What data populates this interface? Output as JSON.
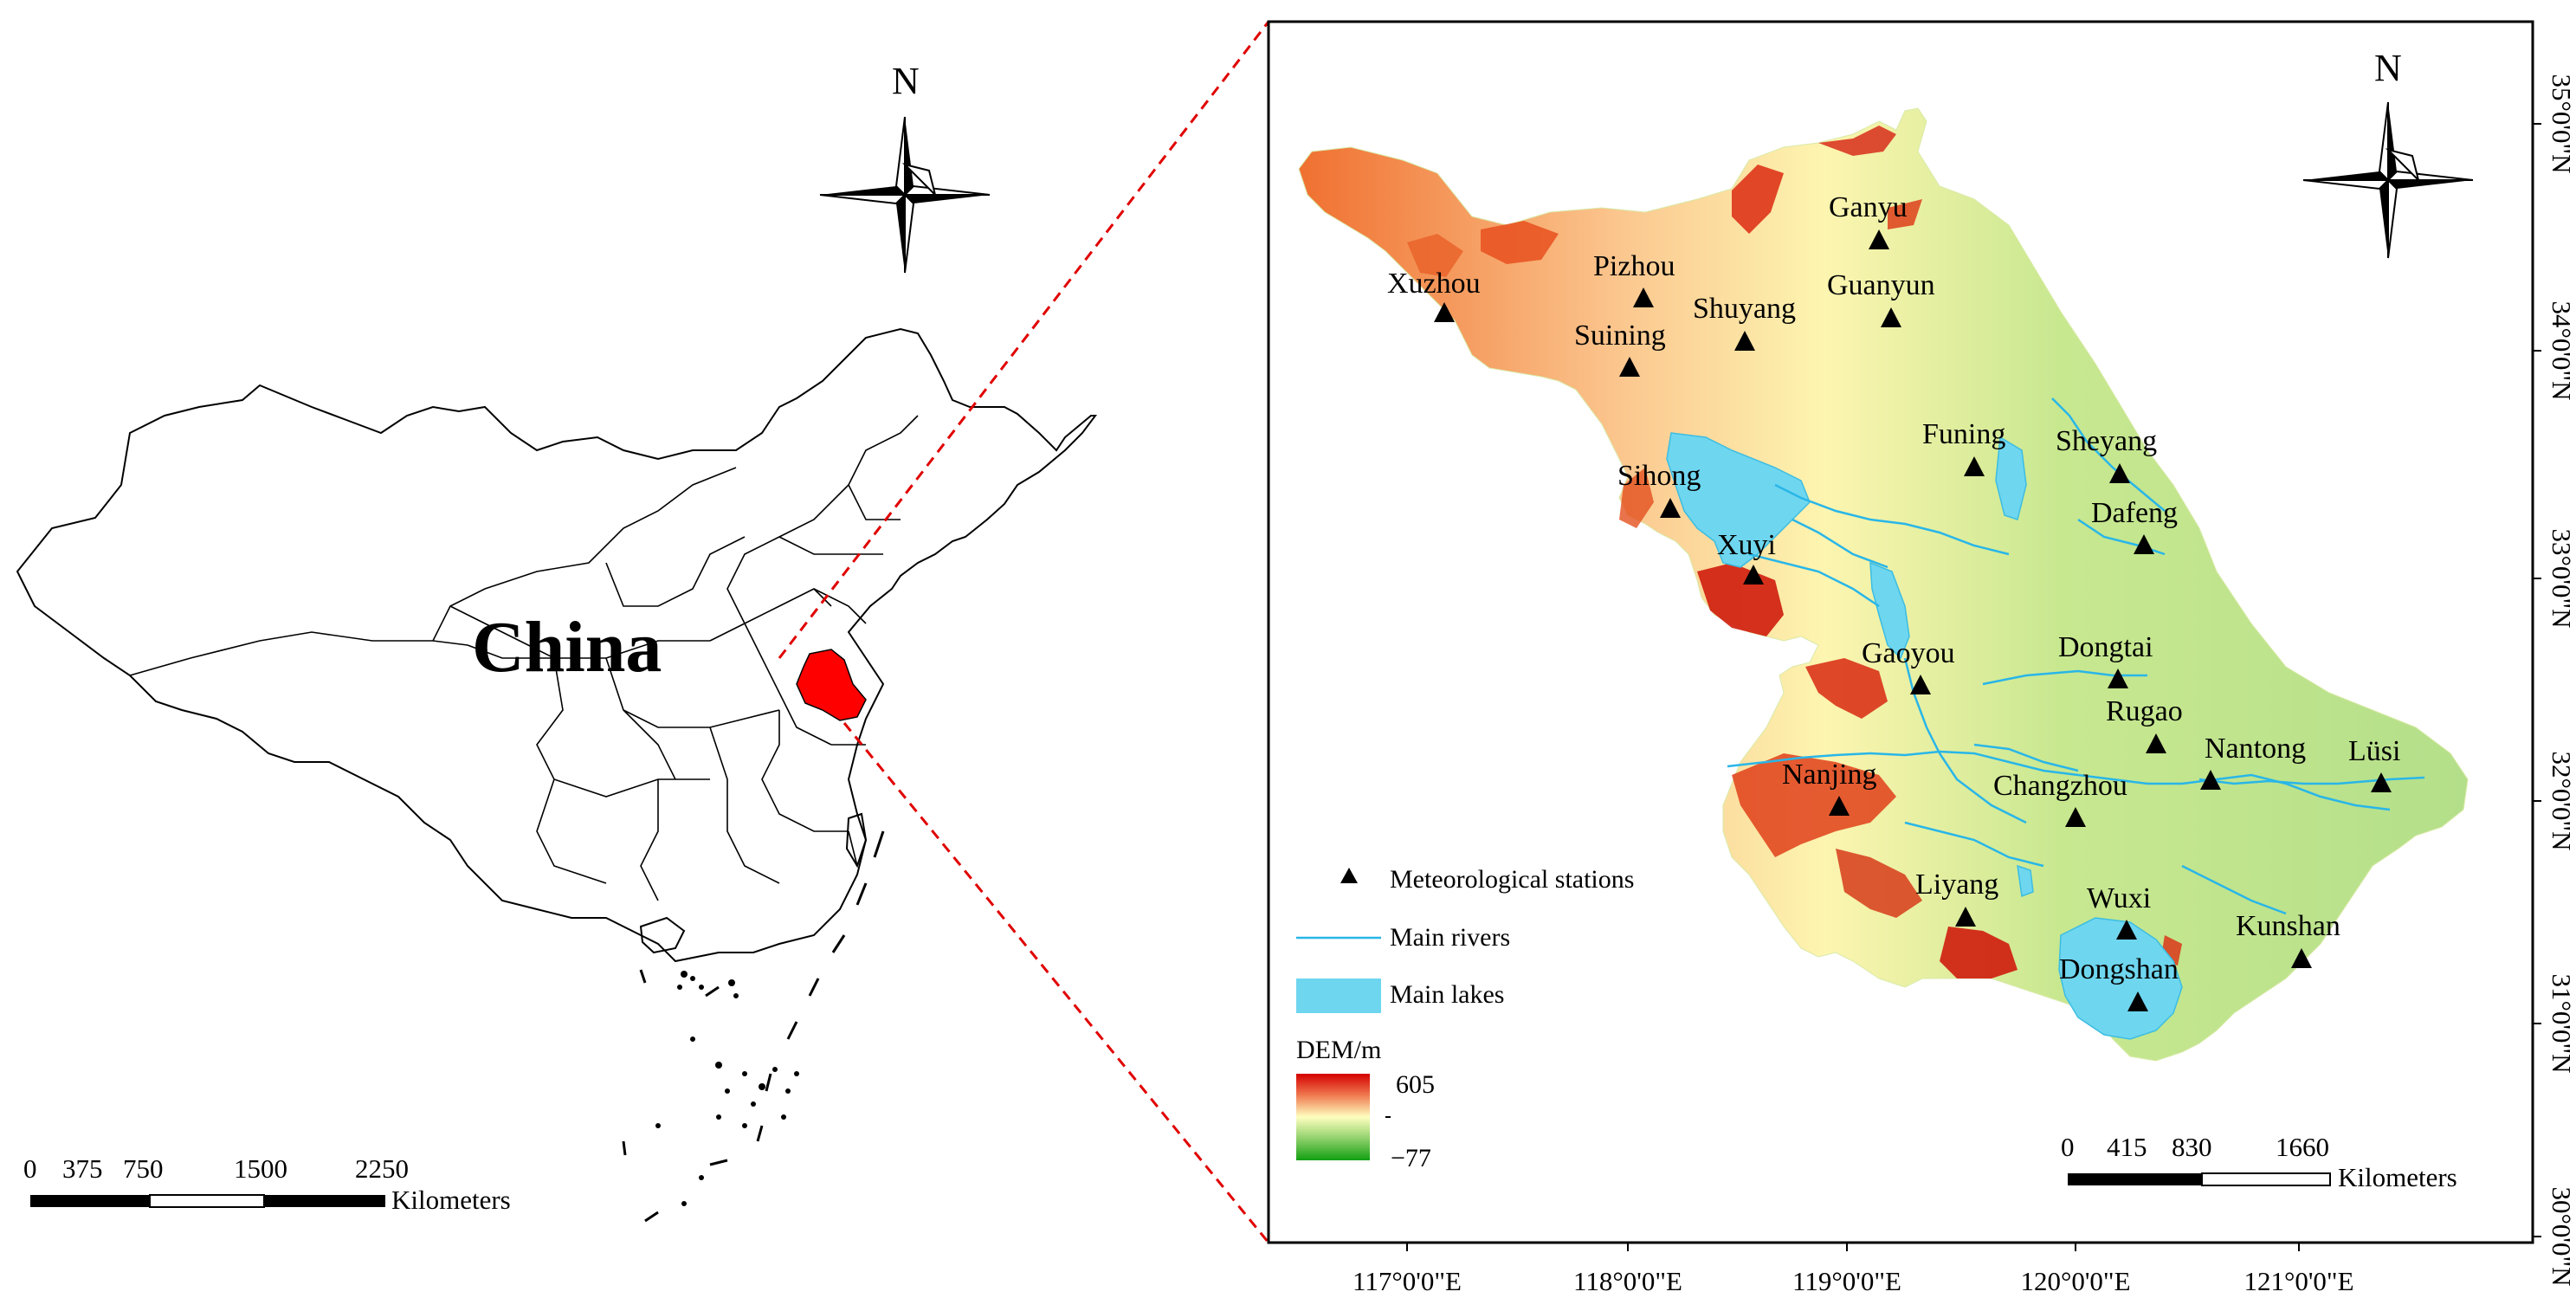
{
  "left_panel": {
    "country_label": "China",
    "north_label": "N",
    "highlight_color": "#ff0000",
    "scale": {
      "ticks": [
        "0",
        "375",
        "750",
        "1500",
        "2250"
      ],
      "unit": "Kilometers"
    }
  },
  "right_panel": {
    "north_label": "N",
    "stations": [
      "Xuzhou",
      "Pizhou",
      "Suining",
      "Shuyang",
      "Ganyu",
      "Guanyun",
      "Funing",
      "Sheyang",
      "Sihong",
      "Xuyi",
      "Dafeng",
      "Gaoyou",
      "Dongtai",
      "Rugao",
      "Nanjing",
      "Changzhou",
      "Nantong",
      "Lüsi",
      "Liyang",
      "Wuxi",
      "Kunshan",
      "Dongshan"
    ],
    "legend": {
      "stations_label": "Meteorological stations",
      "rivers_label": "Main rivers",
      "lakes_label": "Main lakes",
      "dem_title": "DEM/m",
      "dem_max": "605",
      "dem_min": "−77"
    },
    "colors": {
      "river": "#29b6e8",
      "lake": "#6fd6ef",
      "dem_high": "#d40000",
      "dem_mid": "#ffffc0",
      "dem_low": "#12a012"
    },
    "scale": {
      "ticks": [
        "0",
        "415",
        "830",
        "1660"
      ],
      "unit": "Kilometers"
    },
    "x_ticks": [
      "117°0'0\"E",
      "118°0'0\"E",
      "119°0'0\"E",
      "120°0'0\"E",
      "121°0'0\"E"
    ],
    "y_ticks": [
      "35°0'0\"N",
      "34°0'0\"N",
      "33°0'0\"N",
      "32°0'0\"N",
      "31°0'0\"N",
      "30°0'0\"N"
    ]
  }
}
